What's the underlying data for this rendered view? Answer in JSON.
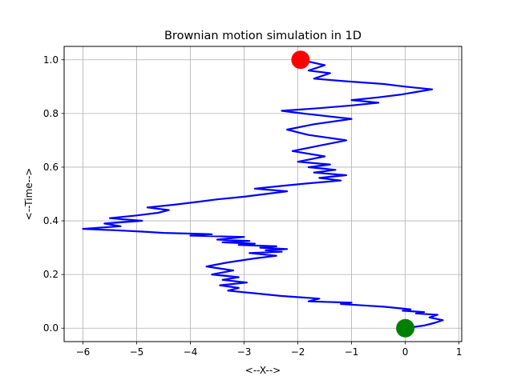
{
  "chart_data": {
    "type": "line",
    "title": "Brownian motion simulation in 1D",
    "xlabel": "<--X-->",
    "ylabel": "<--Time-->",
    "xlim": [
      -6.35,
      1.05
    ],
    "ylim": [
      -0.05,
      1.05
    ],
    "xticks": [
      -6,
      -5,
      -4,
      -3,
      -2,
      -1,
      0,
      1
    ],
    "yticks": [
      0.0,
      0.2,
      0.4,
      0.6,
      0.8,
      1.0
    ],
    "xtick_labels": [
      "−6",
      "−5",
      "−4",
      "−3",
      "−2",
      "−1",
      "0",
      "1"
    ],
    "ytick_labels": [
      "0.0",
      "0.2",
      "0.4",
      "0.6",
      "0.8",
      "1.0"
    ],
    "grid": true,
    "colors": {
      "path": "#0000ff",
      "start": "#008000",
      "end": "#ff0000",
      "grid": "#b0b0b0"
    },
    "series": [
      {
        "x": [
          0.0,
          0.35,
          0.55,
          0.7,
          0.45,
          0.6,
          0.2,
          0.35,
          -0.05,
          0.1,
          -0.4,
          -0.8,
          -1.2,
          -1.0,
          -1.8,
          -1.6,
          -2.3,
          -2.8,
          -3.3,
          -3.1,
          -3.45,
          -2.95,
          -3.4,
          -3.1,
          -3.6,
          -3.2,
          -3.7,
          -3.3,
          -2.8,
          -2.4,
          -2.9,
          -2.3,
          -2.6,
          -2.2,
          -2.7,
          -2.4,
          -3.1,
          -2.8,
          -3.4,
          -2.9,
          -3.5,
          -3.0,
          -4.0,
          -3.6,
          -4.5,
          -4.9,
          -5.4,
          -6.0,
          -5.3,
          -5.6,
          -4.9,
          -5.5,
          -5.0,
          -4.6,
          -4.4,
          -4.8,
          -4.3,
          -3.9,
          -3.5,
          -3.0,
          -2.6,
          -2.2,
          -2.8,
          -2.3,
          -1.8,
          -1.2,
          -1.6,
          -1.1,
          -1.7,
          -1.3,
          -1.8,
          -1.4,
          -2.0,
          -1.5,
          -2.1,
          -1.6,
          -1.1,
          -1.8,
          -2.2,
          -1.7,
          -1.0,
          -1.9,
          -2.3,
          -1.6,
          -1.0,
          -0.5,
          -1.0,
          -0.5,
          -0.1,
          0.2,
          0.5,
          0.0,
          -0.4,
          -1.1,
          -1.7,
          -1.4,
          -1.8,
          -1.5,
          -1.95
        ],
        "y": [
          0.0,
          0.01,
          0.02,
          0.03,
          0.04,
          0.05,
          0.055,
          0.06,
          0.065,
          0.07,
          0.08,
          0.085,
          0.09,
          0.095,
          0.1,
          0.11,
          0.12,
          0.13,
          0.14,
          0.15,
          0.16,
          0.17,
          0.18,
          0.19,
          0.2,
          0.215,
          0.23,
          0.245,
          0.26,
          0.27,
          0.28,
          0.285,
          0.29,
          0.295,
          0.3,
          0.305,
          0.31,
          0.315,
          0.32,
          0.325,
          0.33,
          0.34,
          0.345,
          0.35,
          0.355,
          0.36,
          0.365,
          0.37,
          0.38,
          0.39,
          0.4,
          0.41,
          0.42,
          0.43,
          0.44,
          0.45,
          0.46,
          0.47,
          0.48,
          0.49,
          0.5,
          0.51,
          0.52,
          0.53,
          0.54,
          0.55,
          0.56,
          0.57,
          0.58,
          0.59,
          0.6,
          0.61,
          0.62,
          0.64,
          0.66,
          0.68,
          0.7,
          0.72,
          0.74,
          0.76,
          0.78,
          0.8,
          0.81,
          0.82,
          0.83,
          0.84,
          0.85,
          0.86,
          0.87,
          0.88,
          0.89,
          0.9,
          0.91,
          0.92,
          0.93,
          0.95,
          0.96,
          0.98,
          1.0
        ]
      }
    ],
    "markers": [
      {
        "name": "start",
        "x": 0.0,
        "y": 0.0
      },
      {
        "name": "end",
        "x": -1.95,
        "y": 1.0
      }
    ]
  }
}
